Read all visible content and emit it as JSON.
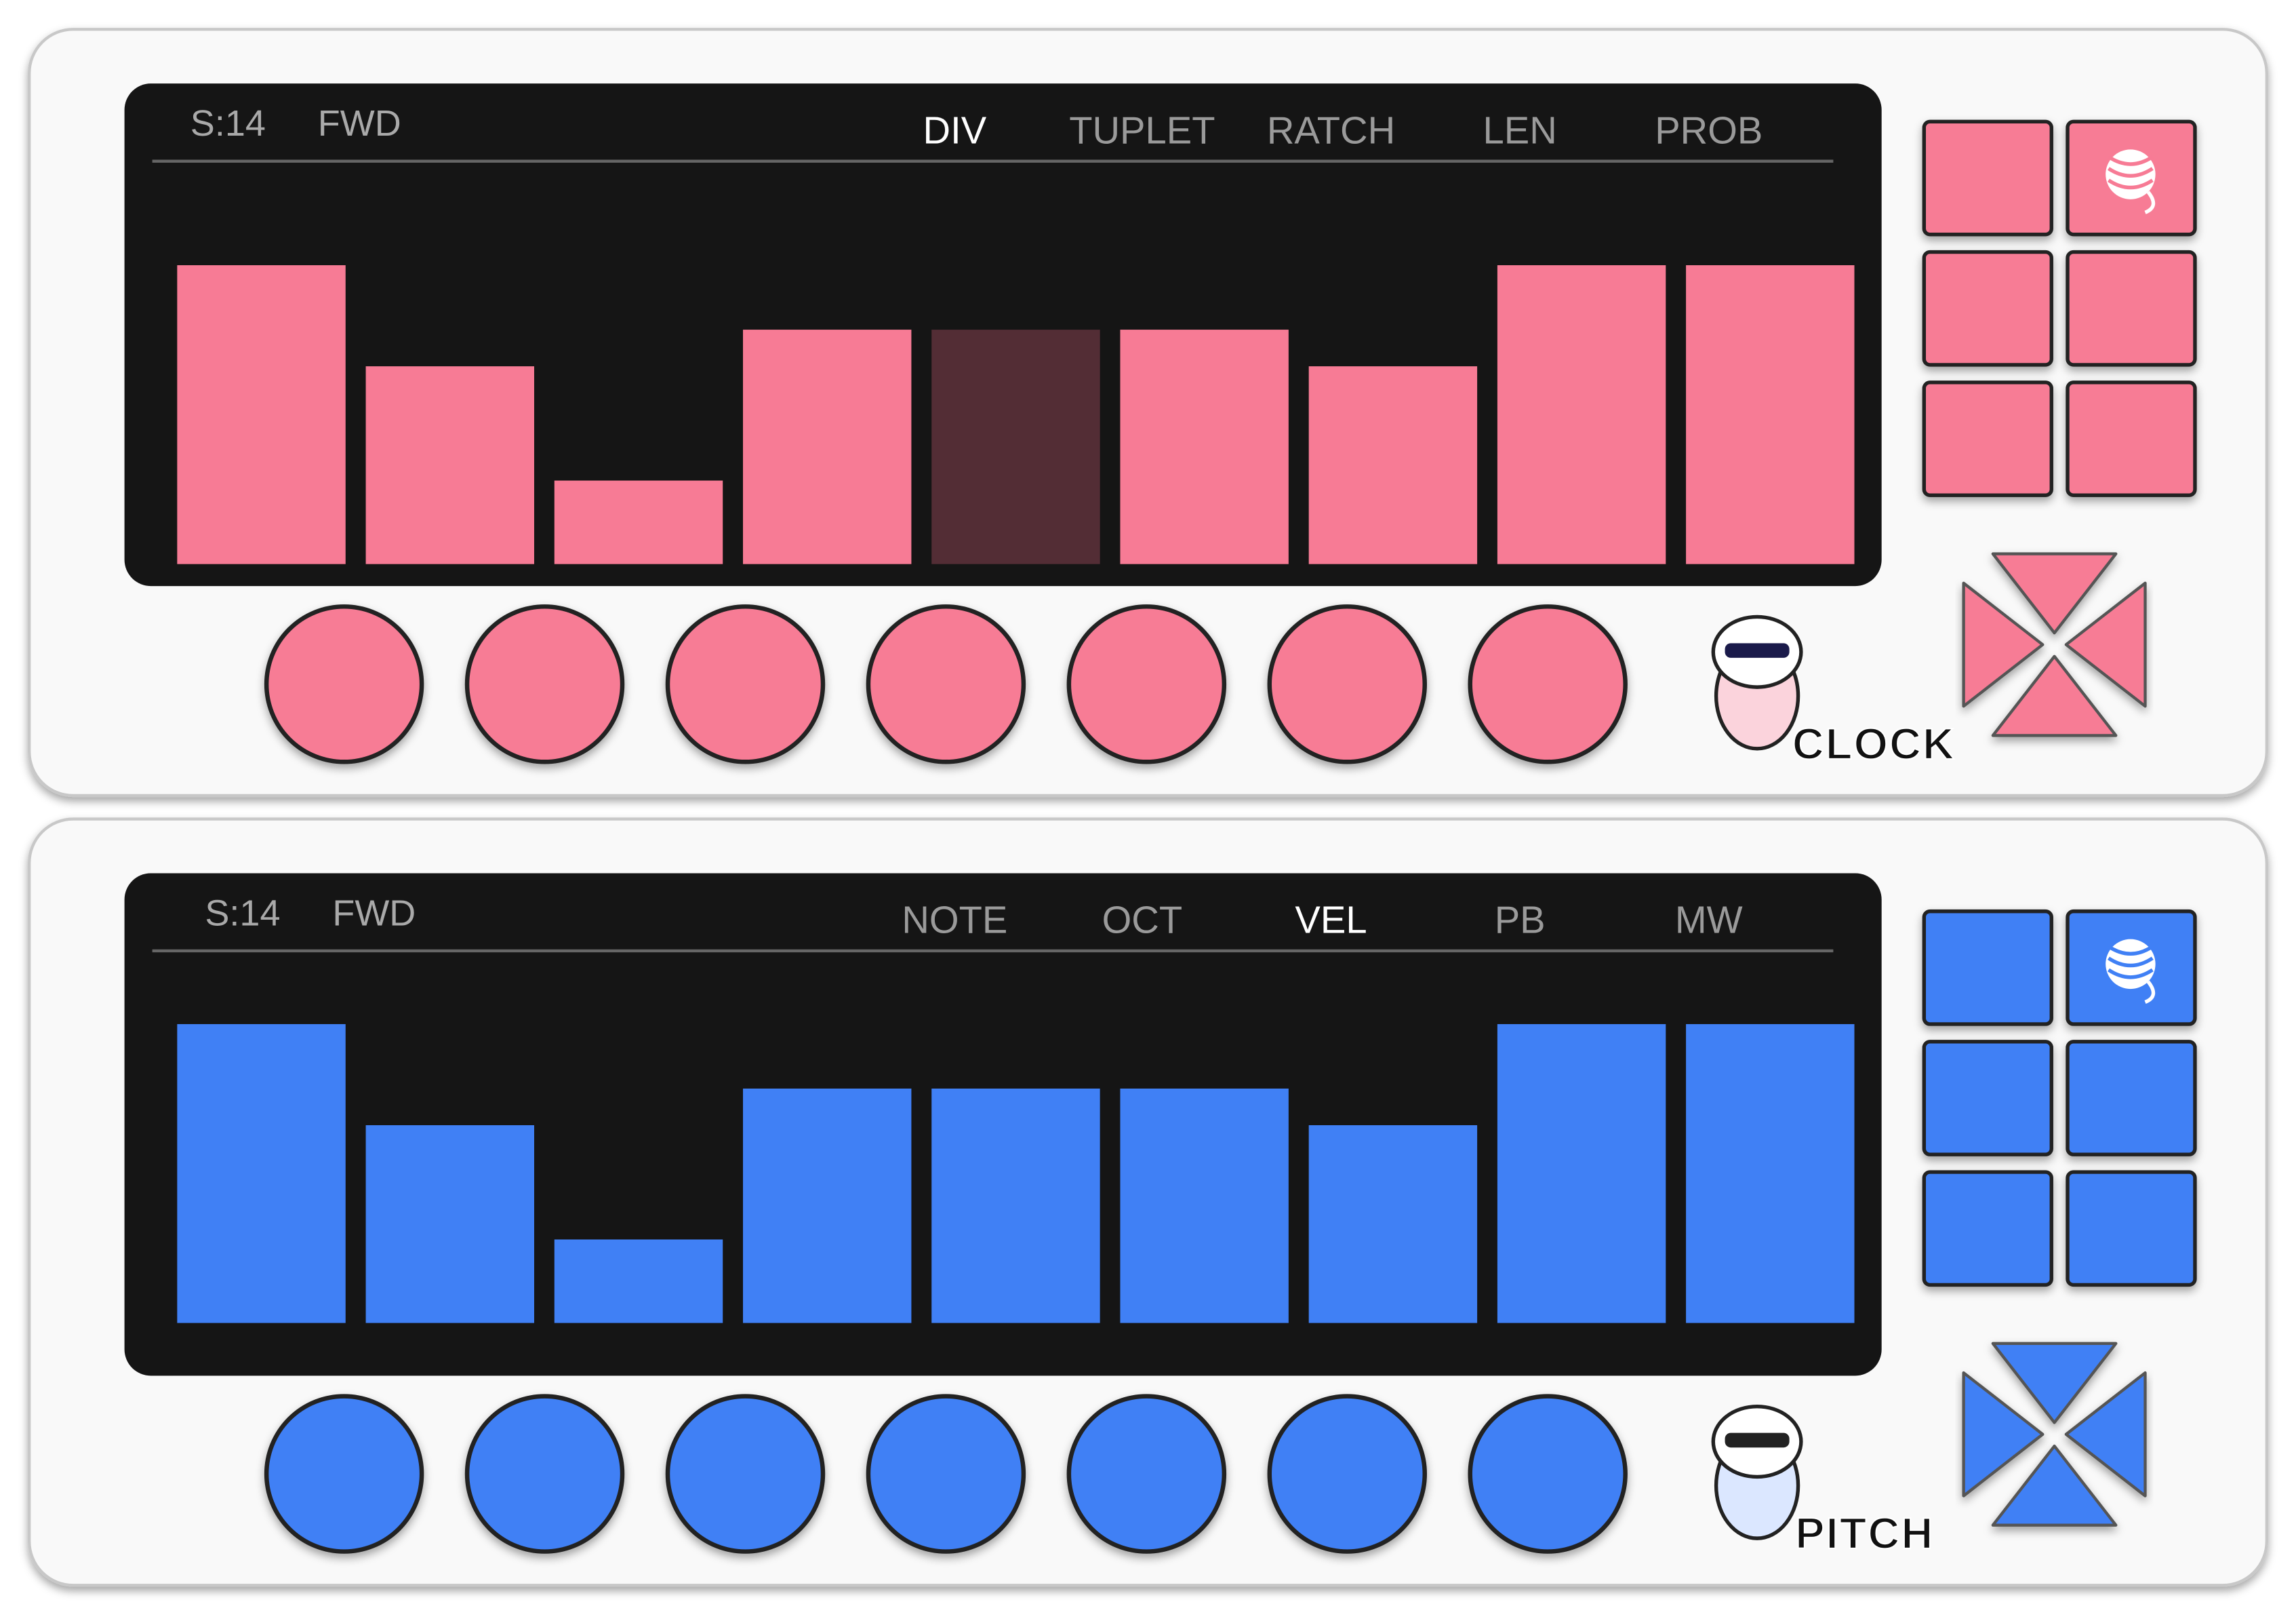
{
  "panels": [
    {
      "status": "S:14",
      "mode": "FWD",
      "tabs": [
        "DIV",
        "TUPLET",
        "RATCH",
        "LEN",
        "PROB"
      ],
      "label": "CLOCK",
      "color": "#f77b95"
    },
    {
      "status": "S:14",
      "mode": "FWD",
      "tabs": [
        "NOTE",
        "OCT",
        "VEL",
        "PB",
        "MW"
      ],
      "label": "PITCH",
      "color": "#4080f5"
    }
  ]
}
